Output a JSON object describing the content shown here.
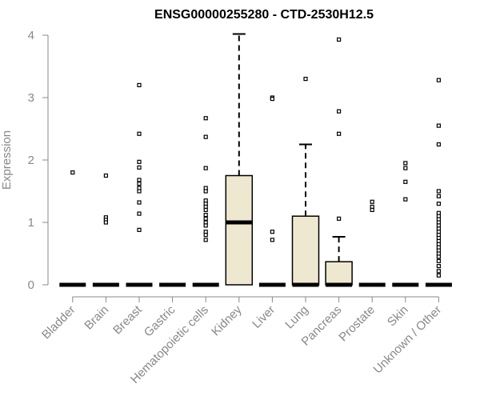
{
  "chart_data": {
    "type": "box",
    "title": "ENSG00000255280 - CTD-2530H12.5",
    "ylabel": "Expression",
    "xlabel": "",
    "ylim": [
      0,
      4
    ],
    "yticks": [
      0,
      1,
      2,
      3,
      4
    ],
    "categories": [
      "Bladder",
      "Brain",
      "Breast",
      "Gastric",
      "Hematopoietic cells",
      "Kidney",
      "Liver",
      "Lung",
      "Pancreas",
      "Prostate",
      "Skin",
      "Unknown / Other"
    ],
    "box_fill": "#efe8d0",
    "boxes": [
      {
        "q1": 0,
        "median": 0,
        "q3": 0,
        "whisker_low": 0,
        "whisker_high": 0,
        "outliers": [
          1.8
        ]
      },
      {
        "q1": 0,
        "median": 0,
        "q3": 0,
        "whisker_low": 0,
        "whisker_high": 0,
        "outliers": [
          1.75,
          1.08,
          1.04,
          1.0
        ]
      },
      {
        "q1": 0,
        "median": 0,
        "q3": 0,
        "whisker_low": 0,
        "whisker_high": 0,
        "outliers": [
          3.2,
          2.42,
          1.97,
          1.88,
          1.68,
          1.62,
          1.55,
          1.5,
          1.32,
          1.14,
          0.88
        ]
      },
      {
        "q1": 0,
        "median": 0,
        "q3": 0,
        "whisker_low": 0,
        "whisker_high": 0,
        "outliers": []
      },
      {
        "q1": 0,
        "median": 0,
        "q3": 0,
        "whisker_low": 0,
        "whisker_high": 0,
        "outliers": [
          2.67,
          2.37,
          1.87,
          1.55,
          1.5,
          1.35,
          1.3,
          1.25,
          1.2,
          1.12,
          1.06,
          1.0,
          0.95,
          0.85,
          0.8,
          0.72
        ]
      },
      {
        "q1": 0,
        "median": 1.0,
        "q3": 1.75,
        "whisker_low": 0,
        "whisker_high": 4.02,
        "outliers": []
      },
      {
        "q1": 0,
        "median": 0,
        "q3": 0,
        "whisker_low": 0,
        "whisker_high": 0,
        "outliers": [
          3.0,
          2.98,
          0.85,
          0.72
        ]
      },
      {
        "q1": 0,
        "median": 0,
        "q3": 1.1,
        "whisker_low": 0,
        "whisker_high": 2.25,
        "outliers": [
          3.3
        ]
      },
      {
        "q1": 0,
        "median": 0,
        "q3": 0.37,
        "whisker_low": 0,
        "whisker_high": 0.77,
        "outliers": [
          3.93,
          2.78,
          2.42,
          1.06
        ]
      },
      {
        "q1": 0,
        "median": 0,
        "q3": 0,
        "whisker_low": 0,
        "whisker_high": 0,
        "outliers": [
          1.33,
          1.25,
          1.2
        ]
      },
      {
        "q1": 0,
        "median": 0,
        "q3": 0,
        "whisker_low": 0,
        "whisker_high": 0,
        "outliers": [
          1.95,
          1.87,
          1.65,
          1.37
        ]
      },
      {
        "q1": 0,
        "median": 0,
        "q3": 0,
        "whisker_low": 0,
        "whisker_high": 0,
        "outliers": [
          3.28,
          2.55,
          2.25,
          1.5,
          1.42,
          1.3,
          1.15,
          1.1,
          1.05,
          1.0,
          0.95,
          0.9,
          0.85,
          0.8,
          0.75,
          0.7,
          0.65,
          0.6,
          0.55,
          0.5,
          0.45,
          0.38,
          0.3,
          0.22,
          0.15
        ]
      }
    ]
  }
}
